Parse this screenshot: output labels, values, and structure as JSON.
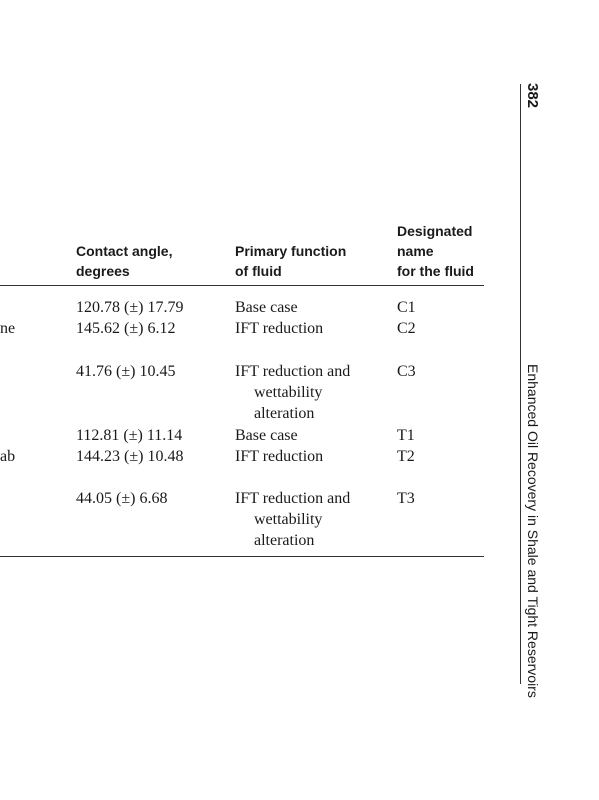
{
  "page_number": "382",
  "running_title": "Enhanced Oil Recovery in Shale and Tight Reservoirs",
  "table": {
    "headers": {
      "contact_angle": [
        "Contact angle,",
        "degrees"
      ],
      "primary_function": [
        "Primary function",
        "of fluid"
      ],
      "designated_name": [
        "Designated",
        "name",
        "for the fluid"
      ]
    },
    "rows": [
      {
        "fragment": "",
        "angle": "120.78 (±) 17.79",
        "function": [
          "Base case"
        ],
        "name": "C1"
      },
      {
        "fragment": "ne",
        "angle": "145.62 (±) 6.12",
        "function": [
          "IFT reduction"
        ],
        "name": "C2"
      },
      {
        "fragment": "",
        "angle": "41.76 (±) 10.45",
        "function": [
          "IFT reduction and",
          "wettability",
          "alteration"
        ],
        "name": "C3"
      },
      {
        "fragment": "",
        "angle": "112.81 (±) 11.14",
        "function": [
          "Base case"
        ],
        "name": "T1"
      },
      {
        "fragment": "ab",
        "angle": "144.23 (±) 10.48",
        "function": [
          "IFT reduction"
        ],
        "name": "T2"
      },
      {
        "fragment": "",
        "angle": "44.05 (±) 6.68",
        "function": [
          "IFT reduction and",
          "wettability",
          "alteration"
        ],
        "name": "T3"
      }
    ]
  }
}
